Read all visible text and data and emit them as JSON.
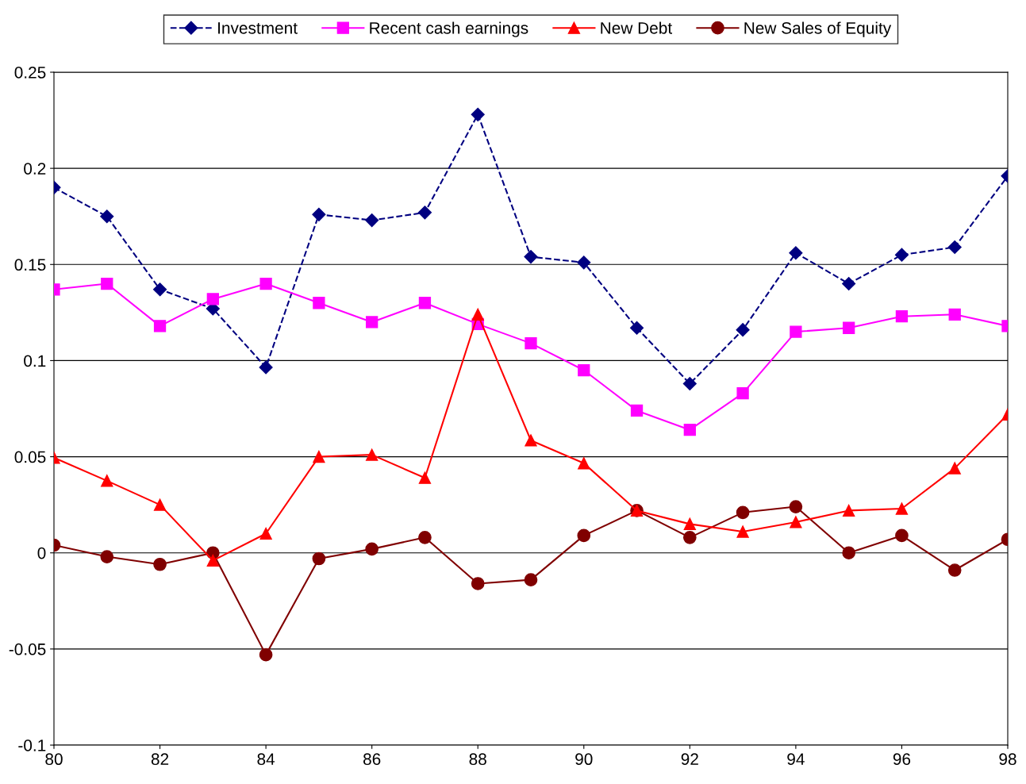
{
  "chart_data": {
    "type": "line",
    "x": [
      80,
      81,
      82,
      83,
      84,
      85,
      86,
      87,
      88,
      89,
      90,
      91,
      92,
      93,
      94,
      95,
      96,
      97,
      98
    ],
    "series": [
      {
        "name": "Investment",
        "color": "#000080",
        "marker": "diamond",
        "line_style": "dashed",
        "values": [
          0.19,
          0.175,
          0.137,
          0.127,
          0.0965,
          0.176,
          0.173,
          0.177,
          0.228,
          0.154,
          0.151,
          0.117,
          0.088,
          0.116,
          0.156,
          0.14,
          0.155,
          0.159,
          0.196
        ]
      },
      {
        "name": "Recent cash earnings",
        "color": "#ff00ff",
        "marker": "square",
        "line_style": "solid",
        "values": [
          0.137,
          0.14,
          0.118,
          0.132,
          0.14,
          0.13,
          0.12,
          0.13,
          0.119,
          0.109,
          0.095,
          0.074,
          0.064,
          0.083,
          0.115,
          0.117,
          0.123,
          0.124,
          0.118
        ]
      },
      {
        "name": "New Debt",
        "color": "#ff0000",
        "marker": "triangle",
        "line_style": "solid",
        "values": [
          0.0495,
          0.0375,
          0.025,
          -0.004,
          0.01,
          0.05,
          0.051,
          0.039,
          0.124,
          0.0585,
          0.0466,
          0.022,
          0.015,
          0.011,
          0.016,
          0.022,
          0.023,
          0.044,
          0.072
        ]
      },
      {
        "name": "New Sales of Equity",
        "color": "#800000",
        "marker": "circle",
        "line_style": "solid",
        "values": [
          0.004,
          -0.002,
          -0.006,
          0.0,
          -0.053,
          -0.003,
          0.002,
          0.008,
          -0.016,
          -0.014,
          0.009,
          0.022,
          0.008,
          0.021,
          0.024,
          0.0,
          0.009,
          -0.009,
          0.007
        ]
      }
    ],
    "xlim": [
      80,
      98
    ],
    "xticks": [
      80,
      82,
      84,
      86,
      88,
      90,
      92,
      94,
      96,
      98
    ],
    "ylim": [
      -0.1,
      0.25
    ],
    "yticks": [
      -0.1,
      -0.05,
      0,
      0.05,
      0.1,
      0.15,
      0.2,
      0.25
    ],
    "grid": "y",
    "legend": "top"
  }
}
